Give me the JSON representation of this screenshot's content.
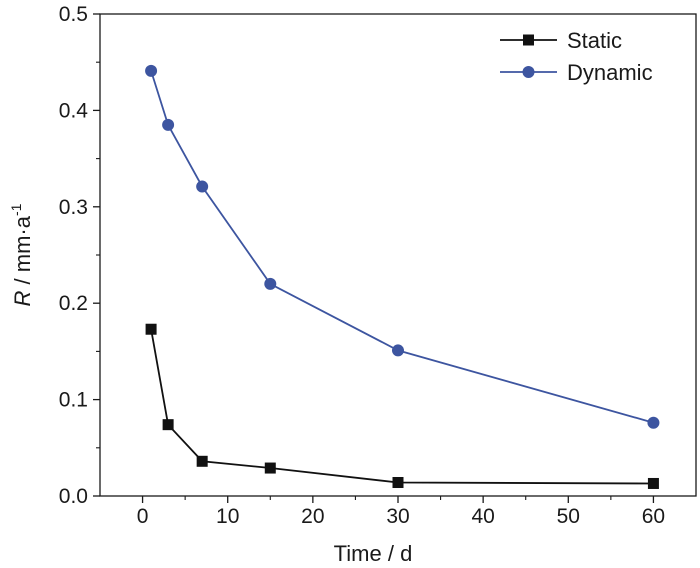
{
  "chart_data": {
    "type": "line",
    "xlabel": "Time / d",
    "ylabel": {
      "symbol": "R",
      "unit": " / mm·a",
      "exponent": "-1"
    },
    "xlim": [
      -5,
      65
    ],
    "ylim": [
      0,
      0.5
    ],
    "xticks": [
      0,
      10,
      20,
      30,
      40,
      50,
      60
    ],
    "yticks": [
      0.0,
      0.1,
      0.2,
      0.3,
      0.4,
      0.5
    ],
    "ytick_labels": [
      "0.0",
      "0.1",
      "0.2",
      "0.3",
      "0.4",
      "0.5"
    ],
    "grid": false,
    "legend_position": "top-right",
    "series": [
      {
        "name": "Static",
        "color": "#111111",
        "marker": "square",
        "x": [
          1,
          3,
          7,
          15,
          30,
          60
        ],
        "y": [
          0.173,
          0.074,
          0.036,
          0.029,
          0.014,
          0.013
        ]
      },
      {
        "name": "Dynamic",
        "color": "#3d55a0",
        "marker": "circle",
        "x": [
          1,
          3,
          7,
          15,
          30,
          60
        ],
        "y": [
          0.441,
          0.385,
          0.321,
          0.22,
          0.151,
          0.076
        ]
      }
    ]
  }
}
